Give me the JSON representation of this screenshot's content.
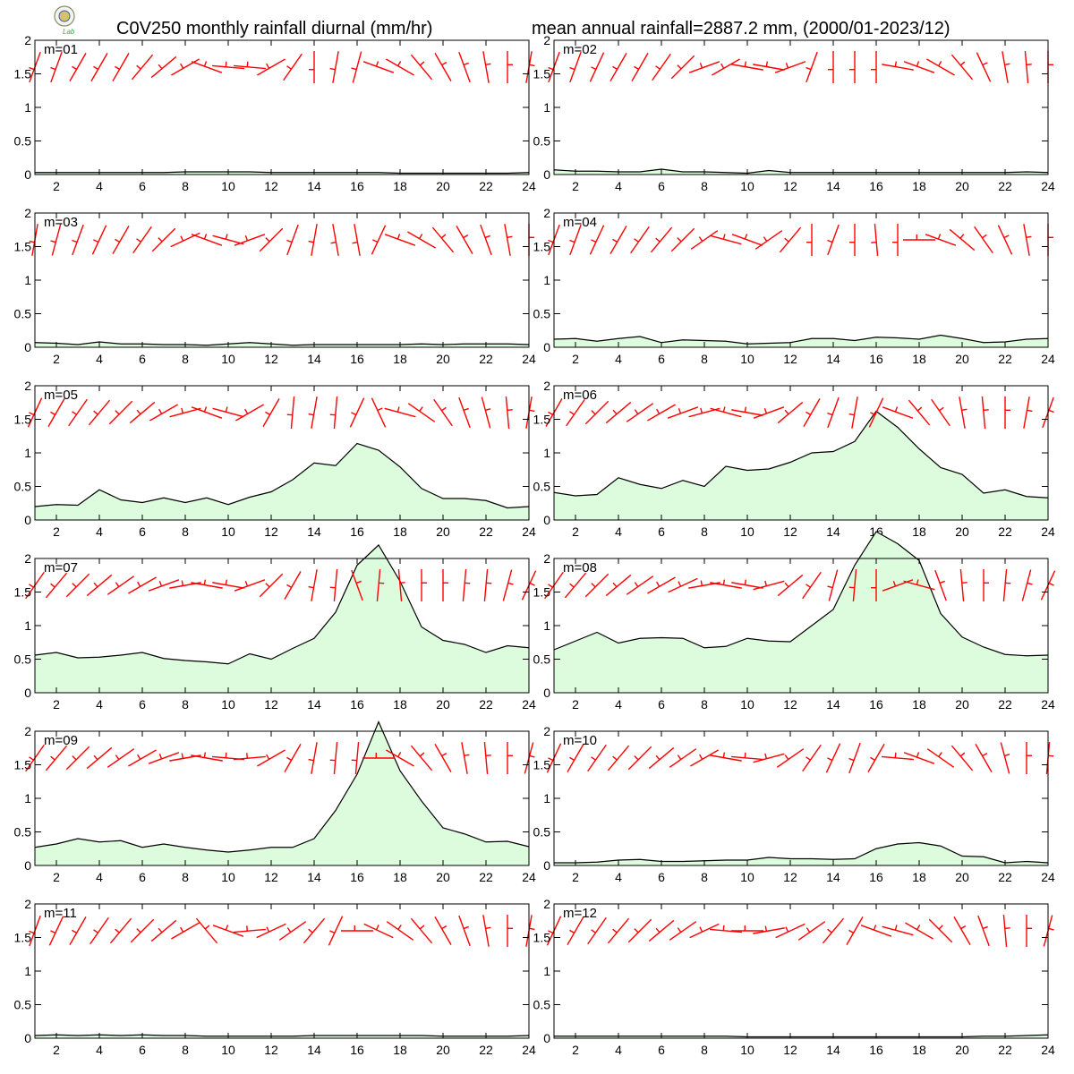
{
  "header": {
    "title_left": "C0V250 monthly rainfall diurnal (mm/hr)",
    "title_right": "mean annual rainfall=2887.2 mm, (2000/01-2023/12)"
  },
  "logo": {
    "icon": "seal-logo-icon",
    "text": "Lab"
  },
  "colors": {
    "fill": "#ddfcdd",
    "line": "#000000",
    "barb": "#ff0000"
  },
  "chart_data": [
    {
      "type": "area",
      "label": "m=01",
      "x": [
        1,
        2,
        3,
        4,
        5,
        6,
        7,
        8,
        9,
        10,
        11,
        12,
        13,
        14,
        15,
        16,
        17,
        18,
        19,
        20,
        21,
        22,
        23,
        24
      ],
      "values": [
        0.03,
        0.03,
        0.03,
        0.03,
        0.03,
        0.03,
        0.03,
        0.04,
        0.04,
        0.04,
        0.04,
        0.03,
        0.03,
        0.03,
        0.03,
        0.03,
        0.03,
        0.02,
        0.02,
        0.02,
        0.02,
        0.02,
        0.02,
        0.03
      ],
      "ylim": [
        0,
        2
      ],
      "yticks": [
        0,
        0.5,
        1,
        1.5,
        2
      ],
      "xticks": [
        2,
        4,
        6,
        8,
        10,
        12,
        14,
        16,
        18,
        20,
        22,
        24
      ],
      "wind_dir": [
        250,
        250,
        240,
        240,
        240,
        230,
        220,
        210,
        160,
        175,
        175,
        210,
        235,
        270,
        260,
        255,
        160,
        150,
        130,
        120,
        110,
        100,
        90,
        80
      ]
    },
    {
      "type": "area",
      "label": "m=02",
      "x": [
        1,
        2,
        3,
        4,
        5,
        6,
        7,
        8,
        9,
        10,
        11,
        12,
        13,
        14,
        15,
        16,
        17,
        18,
        19,
        20,
        21,
        22,
        23,
        24
      ],
      "values": [
        0.07,
        0.05,
        0.05,
        0.04,
        0.04,
        0.08,
        0.04,
        0.04,
        0.03,
        0.02,
        0.06,
        0.03,
        0.03,
        0.03,
        0.03,
        0.03,
        0.03,
        0.03,
        0.03,
        0.03,
        0.03,
        0.03,
        0.04,
        0.03
      ],
      "ylim": [
        0,
        2
      ],
      "yticks": [
        0,
        0.5,
        1,
        1.5,
        2
      ],
      "xticks": [
        2,
        4,
        6,
        8,
        10,
        12,
        14,
        16,
        18,
        20,
        22,
        24
      ],
      "wind_dir": [
        250,
        250,
        245,
        240,
        240,
        235,
        225,
        200,
        210,
        170,
        170,
        200,
        250,
        270,
        270,
        270,
        170,
        160,
        150,
        130,
        115,
        100,
        95,
        90
      ]
    },
    {
      "type": "area",
      "label": "m=03",
      "x": [
        1,
        2,
        3,
        4,
        5,
        6,
        7,
        8,
        9,
        10,
        11,
        12,
        13,
        14,
        15,
        16,
        17,
        18,
        19,
        20,
        21,
        22,
        23,
        24
      ],
      "values": [
        0.07,
        0.06,
        0.04,
        0.08,
        0.05,
        0.05,
        0.04,
        0.04,
        0.03,
        0.05,
        0.07,
        0.05,
        0.03,
        0.04,
        0.04,
        0.04,
        0.04,
        0.04,
        0.05,
        0.04,
        0.05,
        0.05,
        0.05,
        0.04
      ],
      "ylim": [
        0,
        2
      ],
      "yticks": [
        0,
        0.5,
        1,
        1.5,
        2
      ],
      "xticks": [
        2,
        4,
        6,
        8,
        10,
        12,
        14,
        16,
        18,
        20,
        22,
        24
      ],
      "wind_dir": [
        260,
        255,
        250,
        245,
        240,
        235,
        225,
        205,
        160,
        165,
        200,
        225,
        250,
        260,
        280,
        280,
        245,
        160,
        150,
        130,
        120,
        110,
        100,
        90
      ]
    },
    {
      "type": "area",
      "label": "m=04",
      "x": [
        1,
        2,
        3,
        4,
        5,
        6,
        7,
        8,
        9,
        10,
        11,
        12,
        13,
        14,
        15,
        16,
        17,
        18,
        19,
        20,
        21,
        22,
        23,
        24
      ],
      "values": [
        0.12,
        0.13,
        0.09,
        0.13,
        0.16,
        0.07,
        0.11,
        0.1,
        0.09,
        0.05,
        0.06,
        0.07,
        0.13,
        0.13,
        0.1,
        0.15,
        0.14,
        0.12,
        0.18,
        0.13,
        0.07,
        0.08,
        0.12,
        0.13
      ],
      "ylim": [
        0,
        2
      ],
      "yticks": [
        0,
        0.5,
        1,
        1.5,
        2
      ],
      "xticks": [
        2,
        4,
        6,
        8,
        10,
        12,
        14,
        16,
        18,
        20,
        22,
        24
      ],
      "wind_dir": [
        250,
        250,
        245,
        240,
        235,
        230,
        225,
        215,
        165,
        160,
        215,
        230,
        270,
        250,
        270,
        275,
        270,
        180,
        160,
        140,
        125,
        115,
        100,
        90
      ]
    },
    {
      "type": "area",
      "label": "m=05",
      "x": [
        1,
        2,
        3,
        4,
        5,
        6,
        7,
        8,
        9,
        10,
        11,
        12,
        13,
        14,
        15,
        16,
        17,
        18,
        19,
        20,
        21,
        22,
        23,
        24
      ],
      "values": [
        0.2,
        0.23,
        0.22,
        0.45,
        0.3,
        0.26,
        0.33,
        0.26,
        0.33,
        0.23,
        0.34,
        0.42,
        0.6,
        0.85,
        0.81,
        1.14,
        1.04,
        0.79,
        0.47,
        0.32,
        0.32,
        0.29,
        0.18,
        0.2
      ],
      "ylim": [
        0,
        2
      ],
      "yticks": [
        0,
        0.5,
        1,
        1.5,
        2
      ],
      "xticks": [
        2,
        4,
        6,
        8,
        10,
        12,
        14,
        16,
        18,
        20,
        22,
        24
      ],
      "wind_dir": [
        245,
        240,
        235,
        230,
        225,
        220,
        210,
        195,
        160,
        165,
        210,
        240,
        265,
        260,
        265,
        245,
        115,
        165,
        145,
        125,
        110,
        105,
        95,
        80
      ]
    },
    {
      "type": "area",
      "label": "m=06",
      "x": [
        1,
        2,
        3,
        4,
        5,
        6,
        7,
        8,
        9,
        10,
        11,
        12,
        13,
        14,
        15,
        16,
        17,
        18,
        19,
        20,
        21,
        22,
        23,
        24
      ],
      "values": [
        0.41,
        0.36,
        0.38,
        0.63,
        0.53,
        0.47,
        0.59,
        0.5,
        0.8,
        0.74,
        0.76,
        0.86,
        1.0,
        1.02,
        1.17,
        1.62,
        1.38,
        1.06,
        0.78,
        0.68,
        0.4,
        0.45,
        0.35,
        0.33
      ],
      "ylim": [
        0,
        2
      ],
      "yticks": [
        0,
        0.5,
        1,
        1.5,
        2
      ],
      "xticks": [
        2,
        4,
        6,
        8,
        10,
        12,
        14,
        16,
        18,
        20,
        22,
        24
      ],
      "wind_dir": [
        240,
        235,
        225,
        220,
        215,
        210,
        200,
        195,
        165,
        170,
        200,
        220,
        240,
        250,
        260,
        245,
        160,
        130,
        125,
        100,
        95,
        90,
        80,
        70
      ]
    },
    {
      "type": "area",
      "label": "m=07",
      "x": [
        1,
        2,
        3,
        4,
        5,
        6,
        7,
        8,
        9,
        10,
        11,
        12,
        13,
        14,
        15,
        16,
        17,
        18,
        19,
        20,
        21,
        22,
        23,
        24
      ],
      "values": [
        0.56,
        0.6,
        0.52,
        0.53,
        0.56,
        0.6,
        0.51,
        0.48,
        0.46,
        0.43,
        0.58,
        0.5,
        0.66,
        0.81,
        1.2,
        1.9,
        2.2,
        1.66,
        0.98,
        0.78,
        0.72,
        0.6,
        0.7,
        0.67
      ],
      "ylim": [
        0,
        2
      ],
      "yticks": [
        0,
        0.5,
        1,
        1.5,
        2
      ],
      "xticks": [
        2,
        4,
        6,
        8,
        10,
        12,
        14,
        16,
        18,
        20,
        22,
        24
      ],
      "wind_dir": [
        235,
        230,
        225,
        220,
        215,
        210,
        200,
        190,
        170,
        170,
        200,
        225,
        240,
        260,
        265,
        110,
        85,
        95,
        90,
        90,
        85,
        85,
        75,
        65
      ]
    },
    {
      "type": "area",
      "label": "m=08",
      "x": [
        1,
        2,
        3,
        4,
        5,
        6,
        7,
        8,
        9,
        10,
        11,
        12,
        13,
        14,
        15,
        16,
        17,
        18,
        19,
        20,
        21,
        22,
        23,
        24
      ],
      "values": [
        0.64,
        0.77,
        0.9,
        0.74,
        0.81,
        0.82,
        0.81,
        0.67,
        0.69,
        0.81,
        0.77,
        0.76,
        1.0,
        1.24,
        1.9,
        2.4,
        2.22,
        1.97,
        1.18,
        0.83,
        0.68,
        0.57,
        0.55,
        0.56
      ],
      "ylim": [
        0,
        2
      ],
      "yticks": [
        0,
        0.5,
        1,
        1.5,
        2
      ],
      "xticks": [
        2,
        4,
        6,
        8,
        10,
        12,
        14,
        16,
        18,
        20,
        22,
        24
      ],
      "wind_dir": [
        235,
        230,
        225,
        220,
        215,
        210,
        205,
        190,
        170,
        170,
        195,
        220,
        235,
        255,
        265,
        270,
        200,
        165,
        110,
        95,
        90,
        85,
        75,
        65
      ]
    },
    {
      "type": "area",
      "label": "m=09",
      "x": [
        1,
        2,
        3,
        4,
        5,
        6,
        7,
        8,
        9,
        10,
        11,
        12,
        13,
        14,
        15,
        16,
        17,
        18,
        19,
        20,
        21,
        22,
        23,
        24
      ],
      "values": [
        0.27,
        0.32,
        0.4,
        0.35,
        0.37,
        0.27,
        0.32,
        0.27,
        0.23,
        0.2,
        0.23,
        0.27,
        0.27,
        0.4,
        0.82,
        1.36,
        2.14,
        1.41,
        0.96,
        0.56,
        0.47,
        0.35,
        0.36,
        0.28
      ],
      "ylim": [
        0,
        2
      ],
      "yticks": [
        0,
        0.5,
        1,
        1.5,
        2
      ],
      "xticks": [
        2,
        4,
        6,
        8,
        10,
        12,
        14,
        16,
        18,
        20,
        22,
        24
      ],
      "wind_dir": [
        235,
        230,
        225,
        220,
        215,
        210,
        200,
        190,
        170,
        175,
        185,
        210,
        240,
        260,
        265,
        265,
        180,
        150,
        130,
        120,
        100,
        95,
        90,
        75
      ]
    },
    {
      "type": "area",
      "label": "m=10",
      "x": [
        1,
        2,
        3,
        4,
        5,
        6,
        7,
        8,
        9,
        10,
        11,
        12,
        13,
        14,
        15,
        16,
        17,
        18,
        19,
        20,
        21,
        22,
        23,
        24
      ],
      "values": [
        0.04,
        0.04,
        0.05,
        0.08,
        0.09,
        0.06,
        0.06,
        0.07,
        0.08,
        0.08,
        0.12,
        0.1,
        0.1,
        0.09,
        0.1,
        0.25,
        0.32,
        0.34,
        0.29,
        0.14,
        0.13,
        0.04,
        0.06,
        0.04
      ],
      "ylim": [
        0,
        2
      ],
      "yticks": [
        0,
        0.5,
        1,
        1.5,
        2
      ],
      "xticks": [
        2,
        4,
        6,
        8,
        10,
        12,
        14,
        16,
        18,
        20,
        22,
        24
      ],
      "wind_dir": [
        245,
        240,
        235,
        230,
        225,
        220,
        215,
        210,
        170,
        175,
        195,
        215,
        235,
        245,
        250,
        240,
        175,
        160,
        145,
        130,
        120,
        105,
        90,
        85
      ]
    },
    {
      "type": "area",
      "label": "m=11",
      "x": [
        1,
        2,
        3,
        4,
        5,
        6,
        7,
        8,
        9,
        10,
        11,
        12,
        13,
        14,
        15,
        16,
        17,
        18,
        19,
        20,
        21,
        22,
        23,
        24
      ],
      "values": [
        0.04,
        0.05,
        0.04,
        0.05,
        0.04,
        0.05,
        0.04,
        0.04,
        0.03,
        0.03,
        0.03,
        0.03,
        0.03,
        0.04,
        0.04,
        0.04,
        0.04,
        0.04,
        0.04,
        0.03,
        0.03,
        0.03,
        0.03,
        0.04
      ],
      "ylim": [
        0,
        2
      ],
      "yticks": [
        0,
        0.5,
        1,
        1.5,
        2
      ],
      "xticks": [
        2,
        4,
        6,
        8,
        10,
        12,
        14,
        16,
        18,
        20,
        22,
        24
      ],
      "wind_dir": [
        250,
        245,
        240,
        235,
        230,
        225,
        220,
        210,
        130,
        160,
        185,
        205,
        215,
        230,
        245,
        180,
        155,
        145,
        130,
        120,
        110,
        100,
        90,
        80
      ]
    },
    {
      "type": "area",
      "label": "m=12",
      "x": [
        1,
        2,
        3,
        4,
        5,
        6,
        7,
        8,
        9,
        10,
        11,
        12,
        13,
        14,
        15,
        16,
        17,
        18,
        19,
        20,
        21,
        22,
        23,
        24
      ],
      "values": [
        0.03,
        0.03,
        0.03,
        0.03,
        0.03,
        0.03,
        0.03,
        0.03,
        0.03,
        0.02,
        0.02,
        0.02,
        0.02,
        0.02,
        0.02,
        0.02,
        0.02,
        0.02,
        0.02,
        0.02,
        0.03,
        0.03,
        0.04,
        0.05
      ],
      "ylim": [
        0,
        2
      ],
      "yticks": [
        0,
        0.5,
        1,
        1.5,
        2
      ],
      "xticks": [
        2,
        4,
        6,
        8,
        10,
        12,
        14,
        16,
        18,
        20,
        22,
        24
      ],
      "wind_dir": [
        245,
        240,
        235,
        230,
        225,
        220,
        215,
        205,
        175,
        180,
        190,
        205,
        215,
        230,
        240,
        160,
        165,
        150,
        135,
        120,
        110,
        95,
        90,
        75
      ]
    }
  ]
}
